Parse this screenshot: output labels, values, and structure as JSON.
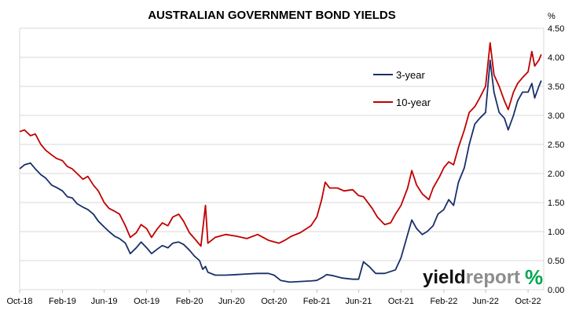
{
  "chart_data": {
    "type": "line",
    "title": "AUSTRALIAN GOVERNMENT BOND YIELDS",
    "y_unit": "%",
    "y_axis_position": "right",
    "ylim": [
      0,
      4.5
    ],
    "y_ticks": [
      "0.00",
      "0.50",
      "1.00",
      "1.50",
      "2.00",
      "2.50",
      "3.00",
      "3.50",
      "4.00",
      "4.50"
    ],
    "xlim": [
      "2018-10-01",
      "2022-11-15"
    ],
    "x_ticks": [
      {
        "label": "Oct-18",
        "date": "2018-10-01"
      },
      {
        "label": "Feb-19",
        "date": "2019-02-01"
      },
      {
        "label": "Jun-19",
        "date": "2019-06-01"
      },
      {
        "label": "Oct-19",
        "date": "2019-10-01"
      },
      {
        "label": "Feb-20",
        "date": "2020-02-01"
      },
      {
        "label": "Jun-20",
        "date": "2020-06-01"
      },
      {
        "label": "Oct-20",
        "date": "2020-10-01"
      },
      {
        "label": "Feb-21",
        "date": "2021-02-01"
      },
      {
        "label": "Jun-21",
        "date": "2021-06-01"
      },
      {
        "label": "Oct-21",
        "date": "2021-10-01"
      },
      {
        "label": "Feb-22",
        "date": "2022-02-01"
      },
      {
        "label": "Jun-22",
        "date": "2022-06-01"
      },
      {
        "label": "Oct-22",
        "date": "2022-10-01"
      }
    ],
    "grid": {
      "horizontal": true,
      "vertical": false
    },
    "legend_position": "top-right",
    "series": [
      {
        "name": "3-year",
        "color": "#1a2f6b",
        "points": [
          [
            "2018-10-01",
            2.08
          ],
          [
            "2018-10-15",
            2.15
          ],
          [
            "2018-11-01",
            2.18
          ],
          [
            "2018-11-15",
            2.08
          ],
          [
            "2018-12-01",
            1.98
          ],
          [
            "2018-12-15",
            1.92
          ],
          [
            "2019-01-01",
            1.8
          ],
          [
            "2019-01-15",
            1.76
          ],
          [
            "2019-02-01",
            1.7
          ],
          [
            "2019-02-15",
            1.6
          ],
          [
            "2019-03-01",
            1.58
          ],
          [
            "2019-03-15",
            1.48
          ],
          [
            "2019-04-01",
            1.42
          ],
          [
            "2019-04-15",
            1.38
          ],
          [
            "2019-05-01",
            1.3
          ],
          [
            "2019-05-15",
            1.18
          ],
          [
            "2019-06-01",
            1.08
          ],
          [
            "2019-06-15",
            1.0
          ],
          [
            "2019-07-01",
            0.92
          ],
          [
            "2019-07-15",
            0.88
          ],
          [
            "2019-08-01",
            0.8
          ],
          [
            "2019-08-15",
            0.62
          ],
          [
            "2019-09-01",
            0.72
          ],
          [
            "2019-09-15",
            0.82
          ],
          [
            "2019-10-01",
            0.72
          ],
          [
            "2019-10-15",
            0.62
          ],
          [
            "2019-11-01",
            0.7
          ],
          [
            "2019-11-15",
            0.76
          ],
          [
            "2019-12-01",
            0.72
          ],
          [
            "2019-12-15",
            0.8
          ],
          [
            "2020-01-01",
            0.82
          ],
          [
            "2020-01-15",
            0.78
          ],
          [
            "2020-02-01",
            0.68
          ],
          [
            "2020-02-15",
            0.58
          ],
          [
            "2020-03-01",
            0.5
          ],
          [
            "2020-03-10",
            0.35
          ],
          [
            "2020-03-18",
            0.4
          ],
          [
            "2020-03-25",
            0.3
          ],
          [
            "2020-04-15",
            0.25
          ],
          [
            "2020-05-15",
            0.25
          ],
          [
            "2020-06-15",
            0.26
          ],
          [
            "2020-07-15",
            0.27
          ],
          [
            "2020-08-15",
            0.28
          ],
          [
            "2020-09-15",
            0.28
          ],
          [
            "2020-10-01",
            0.25
          ],
          [
            "2020-10-20",
            0.16
          ],
          [
            "2020-11-15",
            0.13
          ],
          [
            "2020-12-15",
            0.14
          ],
          [
            "2021-01-15",
            0.15
          ],
          [
            "2021-02-01",
            0.16
          ],
          [
            "2021-02-20",
            0.22
          ],
          [
            "2021-03-01",
            0.26
          ],
          [
            "2021-03-20",
            0.24
          ],
          [
            "2021-04-15",
            0.2
          ],
          [
            "2021-05-15",
            0.18
          ],
          [
            "2021-06-01",
            0.18
          ],
          [
            "2021-06-15",
            0.48
          ],
          [
            "2021-07-01",
            0.4
          ],
          [
            "2021-07-20",
            0.28
          ],
          [
            "2021-08-15",
            0.28
          ],
          [
            "2021-09-15",
            0.34
          ],
          [
            "2021-10-01",
            0.55
          ],
          [
            "2021-10-20",
            0.95
          ],
          [
            "2021-11-01",
            1.2
          ],
          [
            "2021-11-15",
            1.05
          ],
          [
            "2021-12-01",
            0.95
          ],
          [
            "2021-12-15",
            1.0
          ],
          [
            "2022-01-01",
            1.1
          ],
          [
            "2022-01-15",
            1.3
          ],
          [
            "2022-02-01",
            1.38
          ],
          [
            "2022-02-15",
            1.55
          ],
          [
            "2022-03-01",
            1.45
          ],
          [
            "2022-03-15",
            1.85
          ],
          [
            "2022-04-01",
            2.1
          ],
          [
            "2022-04-15",
            2.5
          ],
          [
            "2022-05-01",
            2.85
          ],
          [
            "2022-05-15",
            2.95
          ],
          [
            "2022-06-01",
            3.05
          ],
          [
            "2022-06-14",
            3.95
          ],
          [
            "2022-06-25",
            3.4
          ],
          [
            "2022-07-10",
            3.05
          ],
          [
            "2022-07-25",
            2.95
          ],
          [
            "2022-08-05",
            2.75
          ],
          [
            "2022-08-20",
            3.0
          ],
          [
            "2022-09-01",
            3.25
          ],
          [
            "2022-09-15",
            3.4
          ],
          [
            "2022-10-01",
            3.4
          ],
          [
            "2022-10-12",
            3.55
          ],
          [
            "2022-10-20",
            3.3
          ],
          [
            "2022-11-01",
            3.5
          ],
          [
            "2022-11-08",
            3.6
          ]
        ]
      },
      {
        "name": "10-year",
        "color": "#c00000",
        "points": [
          [
            "2018-10-01",
            2.72
          ],
          [
            "2018-10-15",
            2.75
          ],
          [
            "2018-11-01",
            2.65
          ],
          [
            "2018-11-15",
            2.68
          ],
          [
            "2018-12-01",
            2.5
          ],
          [
            "2018-12-15",
            2.4
          ],
          [
            "2019-01-01",
            2.32
          ],
          [
            "2019-01-15",
            2.26
          ],
          [
            "2019-02-01",
            2.22
          ],
          [
            "2019-02-15",
            2.12
          ],
          [
            "2019-03-01",
            2.08
          ],
          [
            "2019-03-15",
            2.0
          ],
          [
            "2019-04-01",
            1.9
          ],
          [
            "2019-04-15",
            1.95
          ],
          [
            "2019-05-01",
            1.8
          ],
          [
            "2019-05-15",
            1.7
          ],
          [
            "2019-06-01",
            1.5
          ],
          [
            "2019-06-15",
            1.4
          ],
          [
            "2019-07-01",
            1.35
          ],
          [
            "2019-07-15",
            1.3
          ],
          [
            "2019-08-01",
            1.1
          ],
          [
            "2019-08-15",
            0.9
          ],
          [
            "2019-09-01",
            0.98
          ],
          [
            "2019-09-15",
            1.12
          ],
          [
            "2019-10-01",
            1.05
          ],
          [
            "2019-10-15",
            0.9
          ],
          [
            "2019-11-01",
            1.05
          ],
          [
            "2019-11-15",
            1.15
          ],
          [
            "2019-12-01",
            1.1
          ],
          [
            "2019-12-15",
            1.25
          ],
          [
            "2020-01-01",
            1.3
          ],
          [
            "2020-01-15",
            1.18
          ],
          [
            "2020-02-01",
            0.98
          ],
          [
            "2020-02-20",
            0.85
          ],
          [
            "2020-03-05",
            0.75
          ],
          [
            "2020-03-18",
            1.45
          ],
          [
            "2020-03-25",
            0.8
          ],
          [
            "2020-04-15",
            0.9
          ],
          [
            "2020-05-15",
            0.95
          ],
          [
            "2020-06-15",
            0.92
          ],
          [
            "2020-07-15",
            0.88
          ],
          [
            "2020-08-15",
            0.95
          ],
          [
            "2020-09-15",
            0.85
          ],
          [
            "2020-10-15",
            0.8
          ],
          [
            "2020-11-01",
            0.85
          ],
          [
            "2020-11-20",
            0.92
          ],
          [
            "2020-12-15",
            0.98
          ],
          [
            "2021-01-15",
            1.1
          ],
          [
            "2021-02-01",
            1.25
          ],
          [
            "2021-02-15",
            1.55
          ],
          [
            "2021-02-25",
            1.85
          ],
          [
            "2021-03-10",
            1.75
          ],
          [
            "2021-04-01",
            1.75
          ],
          [
            "2021-04-20",
            1.7
          ],
          [
            "2021-05-15",
            1.72
          ],
          [
            "2021-06-01",
            1.62
          ],
          [
            "2021-06-15",
            1.6
          ],
          [
            "2021-07-10",
            1.4
          ],
          [
            "2021-07-25",
            1.25
          ],
          [
            "2021-08-15",
            1.12
          ],
          [
            "2021-09-01",
            1.15
          ],
          [
            "2021-09-15",
            1.3
          ],
          [
            "2021-10-01",
            1.45
          ],
          [
            "2021-10-20",
            1.75
          ],
          [
            "2021-11-01",
            2.05
          ],
          [
            "2021-11-15",
            1.8
          ],
          [
            "2021-12-01",
            1.65
          ],
          [
            "2021-12-20",
            1.55
          ],
          [
            "2022-01-01",
            1.75
          ],
          [
            "2022-01-20",
            1.95
          ],
          [
            "2022-02-01",
            2.1
          ],
          [
            "2022-02-15",
            2.2
          ],
          [
            "2022-03-01",
            2.15
          ],
          [
            "2022-03-15",
            2.45
          ],
          [
            "2022-04-01",
            2.75
          ],
          [
            "2022-04-15",
            3.05
          ],
          [
            "2022-05-01",
            3.15
          ],
          [
            "2022-05-15",
            3.3
          ],
          [
            "2022-06-01",
            3.5
          ],
          [
            "2022-06-14",
            4.25
          ],
          [
            "2022-06-25",
            3.7
          ],
          [
            "2022-07-10",
            3.5
          ],
          [
            "2022-07-25",
            3.25
          ],
          [
            "2022-08-05",
            3.1
          ],
          [
            "2022-08-20",
            3.4
          ],
          [
            "2022-09-01",
            3.55
          ],
          [
            "2022-09-15",
            3.65
          ],
          [
            "2022-10-01",
            3.75
          ],
          [
            "2022-10-12",
            4.1
          ],
          [
            "2022-10-20",
            3.85
          ],
          [
            "2022-11-01",
            3.95
          ],
          [
            "2022-11-08",
            4.05
          ]
        ]
      }
    ]
  },
  "logo": {
    "part1": "yield",
    "part2": "report",
    "mark": "%",
    "mark_colors": [
      "#00a651",
      "#c00000"
    ]
  }
}
